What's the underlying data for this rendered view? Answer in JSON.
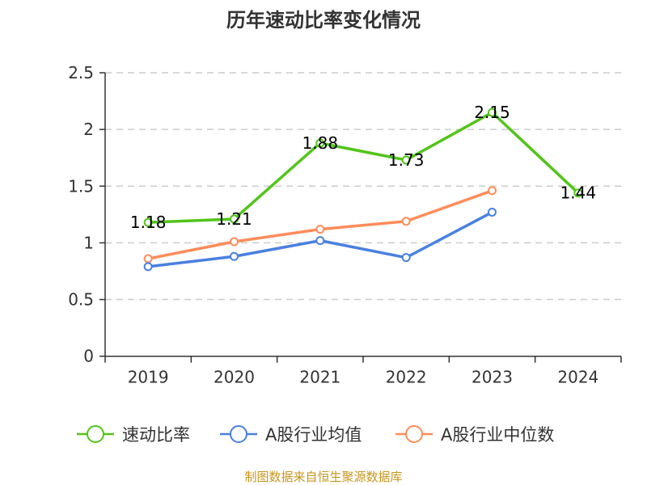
{
  "chart_data": {
    "type": "line",
    "title": "历年速动比率变化情况",
    "categories": [
      "2019",
      "2020",
      "2021",
      "2022",
      "2023",
      "2024"
    ],
    "ylim": [
      0,
      2.5
    ],
    "yticks": [
      "0",
      "0.5",
      "1",
      "1.5",
      "2",
      "2.5"
    ],
    "grid": true,
    "legend_placement": "bottom",
    "series": [
      {
        "name": "速动比率",
        "color": "#52c41a",
        "values": [
          1.18,
          1.21,
          1.88,
          1.73,
          2.15,
          1.44
        ],
        "labels": [
          "1.18",
          "1.21",
          "1.88",
          "1.73",
          "2.15",
          "1.44"
        ]
      },
      {
        "name": "A股行业均值",
        "color": "#4a80e0",
        "values": [
          0.79,
          0.88,
          1.02,
          0.87,
          1.27,
          null
        ]
      },
      {
        "name": "A股行业中位数",
        "color": "#ff8c5a",
        "values": [
          0.86,
          1.01,
          1.12,
          1.19,
          1.46,
          null
        ]
      }
    ]
  },
  "source": "制图数据来自恒生聚源数据库"
}
